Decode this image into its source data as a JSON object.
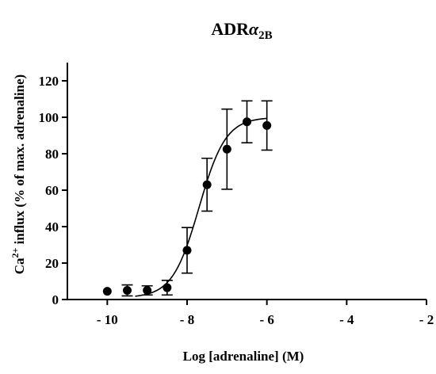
{
  "chart_data": {
    "type": "scatter",
    "title": "ADR",
    "title_symbol": "α",
    "title_subscript": "2B",
    "xlabel": "Log [adrenaline] (M)",
    "ylabel": "Ca",
    "ylabel_superscript": "2+",
    "ylabel_rest": " influx (% of max. adrenaline)",
    "xlim": [
      -11,
      -2
    ],
    "ylim": [
      0,
      130
    ],
    "x_ticks": [
      -10,
      -8,
      -6,
      -4,
      -2
    ],
    "x_tick_labels": [
      "- 10",
      "- 8",
      "- 6",
      "- 4",
      "- 2"
    ],
    "y_ticks": [
      0,
      20,
      40,
      60,
      80,
      100,
      120
    ],
    "y_tick_labels": [
      "0",
      "20",
      "40",
      "60",
      "80",
      "100",
      "120"
    ],
    "grid": false,
    "legend": "none",
    "series": [
      {
        "points": [
          {
            "x": -10,
            "y": 4.5,
            "err": 0
          },
          {
            "x": -9.5,
            "y": 5,
            "err": 3
          },
          {
            "x": -9,
            "y": 5,
            "err": 2.5
          },
          {
            "x": -8.5,
            "y": 6.5,
            "err": 4
          },
          {
            "x": -8,
            "y": 27,
            "err": 12.5
          },
          {
            "x": -7.5,
            "y": 63,
            "err": 14.5
          },
          {
            "x": -7,
            "y": 82.5,
            "err": 22
          },
          {
            "x": -6.5,
            "y": 97.5,
            "err": 11.5
          },
          {
            "x": -6,
            "y": 95.5,
            "err": 13.5
          }
        ],
        "fit": {
          "model": "sigmoidal dose-response",
          "bottom": 1,
          "top": 100,
          "logEC50": -7.7,
          "hill": 1.3,
          "x_start": -9.3,
          "x_end": -6
        }
      }
    ],
    "colors": {
      "markers": "#000000",
      "axes": "#000000"
    }
  }
}
